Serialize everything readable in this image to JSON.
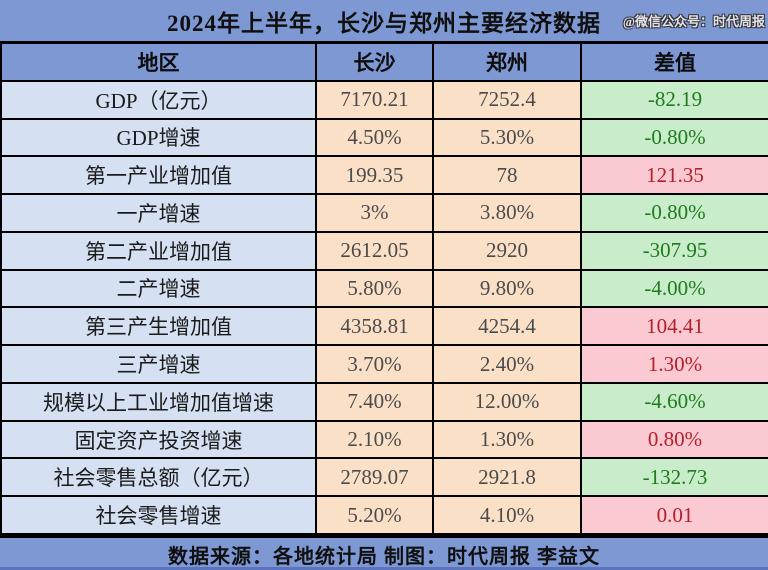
{
  "title": "2024年上半年，长沙与郑州主要经济数据",
  "watermark": "@微信公众号：时代周报",
  "footer": "数据来源：各地统计局  制图：时代周报 李益文",
  "colors": {
    "chrome_blue": "#7E98D4",
    "label_blue": "#D5E0F2",
    "value_peach": "#FBE0C8",
    "diff_green_bg": "#C9EDCB",
    "diff_green_text": "#1E7B1E",
    "diff_red_bg": "#FBC9D1",
    "diff_red_text": "#B3202C"
  },
  "chart_data": {
    "type": "table",
    "title": "2024年上半年，长沙与郑州主要经济数据",
    "columns": [
      "地区",
      "长沙",
      "郑州",
      "差值"
    ],
    "rows": [
      {
        "indicator": "GDP（亿元）",
        "changsha": "7170.21",
        "zhengzhou": "7252.4",
        "diff": "-82.19",
        "diff_color": "green"
      },
      {
        "indicator": "GDP增速",
        "changsha": "4.50%",
        "zhengzhou": "5.30%",
        "diff": "-0.80%",
        "diff_color": "green"
      },
      {
        "indicator": "第一产业增加值",
        "changsha": "199.35",
        "zhengzhou": "78",
        "diff": "121.35",
        "diff_color": "red"
      },
      {
        "indicator": "一产增速",
        "changsha": "3%",
        "zhengzhou": "3.80%",
        "diff": "-0.80%",
        "diff_color": "green"
      },
      {
        "indicator": "第二产业增加值",
        "changsha": "2612.05",
        "zhengzhou": "2920",
        "diff": "-307.95",
        "diff_color": "green"
      },
      {
        "indicator": "二产增速",
        "changsha": "5.80%",
        "zhengzhou": "9.80%",
        "diff": "-4.00%",
        "diff_color": "green"
      },
      {
        "indicator": "第三产生增加值",
        "changsha": "4358.81",
        "zhengzhou": "4254.4",
        "diff": "104.41",
        "diff_color": "red"
      },
      {
        "indicator": "三产增速",
        "changsha": "3.70%",
        "zhengzhou": "2.40%",
        "diff": "1.30%",
        "diff_color": "red"
      },
      {
        "indicator": "规模以上工业增加值增速",
        "changsha": "7.40%",
        "zhengzhou": "12.00%",
        "diff": "-4.60%",
        "diff_color": "green"
      },
      {
        "indicator": "固定资产投资增速",
        "changsha": "2.10%",
        "zhengzhou": "1.30%",
        "diff": "0.80%",
        "diff_color": "red"
      },
      {
        "indicator": "社会零售总额（亿元）",
        "changsha": "2789.07",
        "zhengzhou": "2921.8",
        "diff": "-132.73",
        "diff_color": "green"
      },
      {
        "indicator": "社会零售增速",
        "changsha": "5.20%",
        "zhengzhou": "4.10%",
        "diff": "0.01",
        "diff_color": "red"
      }
    ],
    "source_note": "数据来源：各地统计局  制图：时代周报 李益文",
    "layout": {
      "grid": "on",
      "diff_column_semantics": "green = Changsha below Zhengzhou, pink = Changsha above Zhengzhou"
    }
  }
}
